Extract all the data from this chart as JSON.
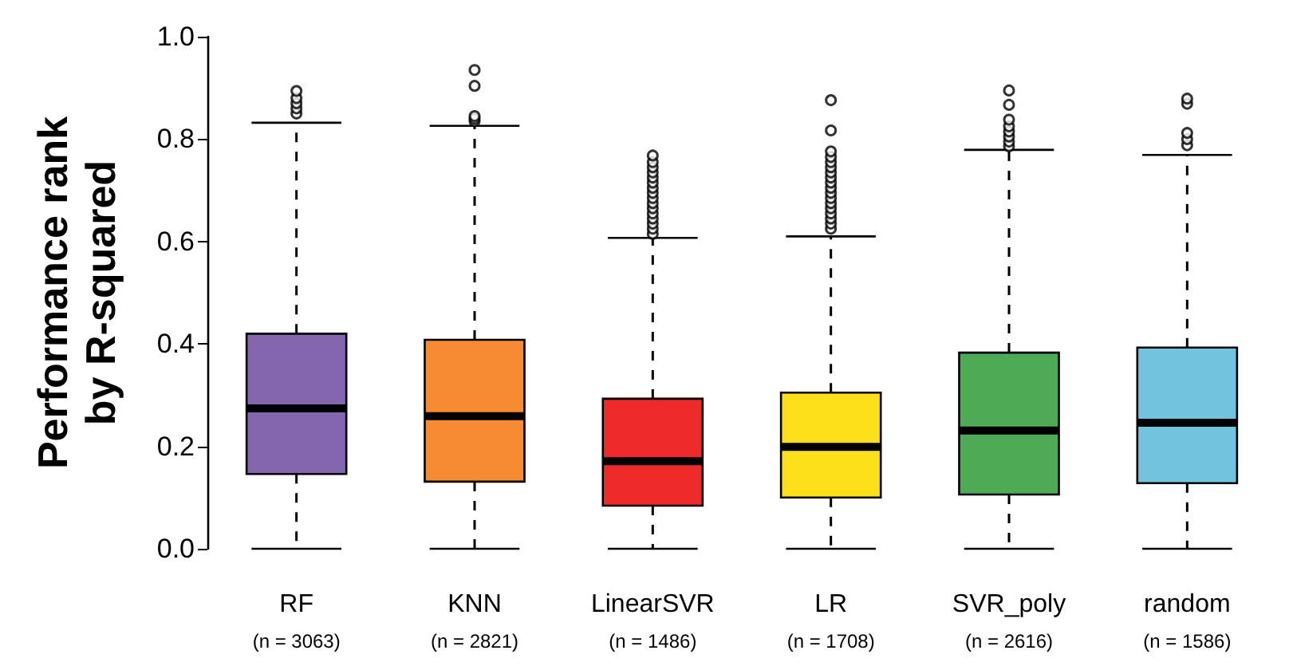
{
  "chart_data": {
    "type": "box",
    "ylabel": "Performance rank\nby R-squared",
    "categories": [
      "RF\n(n = 3063)",
      "KNN\n(n = 2821)",
      "LinearSVR\n(n = 1486)",
      "LR\n(n = 1708)",
      "SVR_poly\n(n = 2616)",
      "random\n(n = 1586)"
    ],
    "colors": [
      "#8466ae",
      "#f68b33",
      "#ee2b2a",
      "#fde01a",
      "#4eaa55",
      "#72c4de"
    ],
    "boxes": [
      {
        "low": 0,
        "q1": 0.146,
        "median": 0.274,
        "q3": 0.42,
        "high": 0.832,
        "outliers": [
          0.85,
          0.86,
          0.87,
          0.88,
          0.894
        ]
      },
      {
        "low": 0,
        "q1": 0.131,
        "median": 0.259,
        "q3": 0.408,
        "high": 0.826,
        "outliers": [
          0.835,
          0.84,
          0.845,
          0.904,
          0.935
        ]
      },
      {
        "low": 0,
        "q1": 0.084,
        "median": 0.171,
        "q3": 0.293,
        "high": 0.607,
        "outliers": [
          0.615,
          0.625,
          0.635,
          0.645,
          0.655,
          0.665,
          0.675,
          0.685,
          0.695,
          0.705,
          0.715,
          0.725,
          0.735,
          0.745,
          0.755,
          0.768
        ]
      },
      {
        "low": 0,
        "q1": 0.1,
        "median": 0.199,
        "q3": 0.305,
        "high": 0.61,
        "outliers": [
          0.625,
          0.635,
          0.645,
          0.655,
          0.665,
          0.675,
          0.685,
          0.695,
          0.705,
          0.715,
          0.725,
          0.735,
          0.745,
          0.755,
          0.765,
          0.776,
          0.817,
          0.876
        ]
      },
      {
        "low": 0,
        "q1": 0.106,
        "median": 0.231,
        "q3": 0.383,
        "high": 0.779,
        "outliers": [
          0.786,
          0.795,
          0.805,
          0.815,
          0.825,
          0.838,
          0.867,
          0.895
        ]
      },
      {
        "low": 0,
        "q1": 0.128,
        "median": 0.246,
        "q3": 0.393,
        "high": 0.769,
        "outliers": [
          0.788,
          0.8,
          0.812,
          0.869,
          0.879
        ]
      }
    ],
    "ylim": [
      0,
      1
    ],
    "yticks": [
      {
        "value": 0,
        "label": "0.0"
      },
      0.2,
      0.4,
      0.6,
      0.8,
      {
        "value": 1,
        "label": "1.0"
      }
    ],
    "grid": false,
    "legend": false
  }
}
